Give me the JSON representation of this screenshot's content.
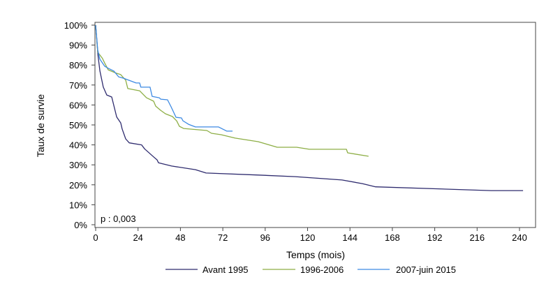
{
  "chart_data": {
    "type": "line",
    "title": "",
    "xlabel": "Temps (mois)",
    "ylabel": "Taux de survie",
    "xlim": [
      0,
      248
    ],
    "ylim": [
      0,
      100
    ],
    "x_ticks": [
      0,
      24,
      48,
      72,
      96,
      120,
      144,
      168,
      192,
      216,
      240
    ],
    "y_ticks": [
      0,
      10,
      20,
      30,
      40,
      50,
      60,
      70,
      80,
      90,
      100
    ],
    "y_tick_labels": [
      "0%",
      "10%",
      "20%",
      "30%",
      "40%",
      "50%",
      "60%",
      "70%",
      "80%",
      "90%",
      "100%"
    ],
    "grid": false,
    "legend_position": "bottom",
    "annotation": "p : 0,003",
    "series": [
      {
        "name": "Avant 1995",
        "color": "#2e2b6e",
        "points": [
          [
            0,
            100
          ],
          [
            1.3,
            85
          ],
          [
            2.4,
            77
          ],
          [
            4.3,
            69
          ],
          [
            6.3,
            65
          ],
          [
            9.1,
            64
          ],
          [
            11.9,
            54
          ],
          [
            14.2,
            51
          ],
          [
            15,
            48
          ],
          [
            17,
            43
          ],
          [
            19,
            41
          ],
          [
            26,
            40
          ],
          [
            27.7,
            38
          ],
          [
            32.8,
            34
          ],
          [
            34.8,
            32.5
          ],
          [
            35.6,
            31
          ],
          [
            43,
            29.4
          ],
          [
            56.5,
            27.6
          ],
          [
            62.5,
            25.9
          ],
          [
            92,
            24.9
          ],
          [
            113,
            24.1
          ],
          [
            139.5,
            22.4
          ],
          [
            151,
            20.6
          ],
          [
            158.5,
            19
          ],
          [
            224,
            17.1
          ],
          [
            242,
            17.1
          ]
        ]
      },
      {
        "name": "1996-2006",
        "color": "#8dae45",
        "points": [
          [
            0,
            100
          ],
          [
            1.2,
            86.4
          ],
          [
            3.8,
            83.4
          ],
          [
            5.1,
            81
          ],
          [
            7.1,
            77.6
          ],
          [
            11.7,
            75.9
          ],
          [
            14.2,
            75.2
          ],
          [
            17,
            72.4
          ],
          [
            18.2,
            68.2
          ],
          [
            24.9,
            67.1
          ],
          [
            28.8,
            63.6
          ],
          [
            32.8,
            61.9
          ],
          [
            34,
            59.4
          ],
          [
            36.8,
            57.3
          ],
          [
            39.5,
            55.6
          ],
          [
            43.5,
            54.2
          ],
          [
            45.9,
            52
          ],
          [
            47.4,
            49.3
          ],
          [
            49.8,
            48.2
          ],
          [
            63,
            47.2
          ],
          [
            65.6,
            45.8
          ],
          [
            71,
            45.1
          ],
          [
            79,
            43.4
          ],
          [
            92,
            41.6
          ],
          [
            102.8,
            38.8
          ],
          [
            113.8,
            38.8
          ],
          [
            121,
            37.8
          ],
          [
            142,
            37.8
          ],
          [
            142.7,
            36
          ],
          [
            154.5,
            34.3
          ]
        ]
      },
      {
        "name": "2007-juin 2015",
        "color": "#3d8ae3",
        "points": [
          [
            0,
            100
          ],
          [
            1.2,
            87.5
          ],
          [
            2.4,
            82.9
          ],
          [
            5.1,
            79.4
          ],
          [
            7.1,
            78.4
          ],
          [
            10.3,
            77
          ],
          [
            13,
            74.1
          ],
          [
            15.8,
            73.4
          ],
          [
            22.9,
            71
          ],
          [
            24.9,
            71
          ],
          [
            25.6,
            68.9
          ],
          [
            30.8,
            68.9
          ],
          [
            32,
            64.3
          ],
          [
            36,
            63.6
          ],
          [
            36.8,
            62.9
          ],
          [
            40.7,
            62.6
          ],
          [
            42.7,
            59.1
          ],
          [
            45.5,
            53.8
          ],
          [
            48.6,
            53.5
          ],
          [
            49.4,
            52.1
          ],
          [
            52.6,
            50.3
          ],
          [
            56.5,
            49
          ],
          [
            69.6,
            49
          ],
          [
            74.3,
            46.9
          ],
          [
            77.5,
            46.9
          ]
        ]
      }
    ]
  }
}
